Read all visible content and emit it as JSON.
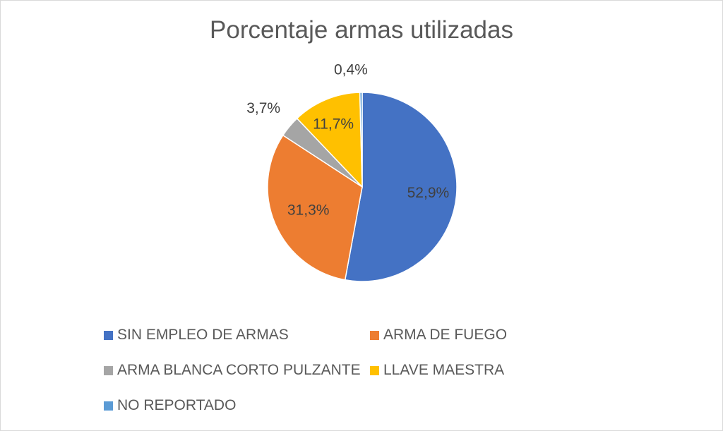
{
  "chart_data": {
    "type": "pie",
    "title": "Porcentaje armas utilizadas",
    "categories": [
      "SIN EMPLEO DE ARMAS",
      "ARMA DE FUEGO",
      "ARMA BLANCA CORTO PULZANTE",
      "LLAVE MAESTRA",
      "NO REPORTADO"
    ],
    "values": [
      52.9,
      31.3,
      3.7,
      11.7,
      0.4
    ],
    "labels": [
      "52,9%",
      "31,3%",
      "3,7%",
      "11,7%",
      "0,4%"
    ],
    "colors": [
      "#4472C4",
      "#ED7D31",
      "#A5A5A5",
      "#FFC000",
      "#5B9BD5"
    ],
    "legend_position": "bottom"
  }
}
